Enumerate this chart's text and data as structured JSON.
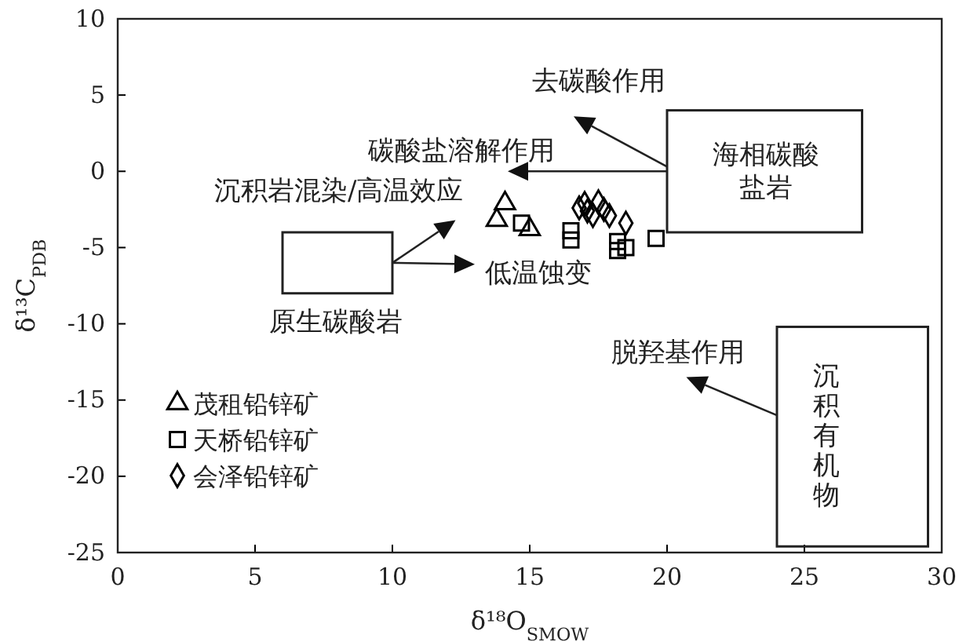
{
  "chart_data": {
    "type": "scatter",
    "xlabel": "δ¹⁸O$_{SMOW}$",
    "ylabel": "δ¹³C$_{PDB}$",
    "xlim": [
      0,
      30
    ],
    "ylim": [
      -25,
      10
    ],
    "xticks": [
      0,
      5,
      10,
      15,
      20,
      25,
      30
    ],
    "yticks": [
      -25,
      -20,
      -15,
      -10,
      -5,
      0,
      5,
      10
    ],
    "grid": false,
    "legend": "bottom left",
    "series": [
      {
        "name": "茂租铅锌矿",
        "color": "#000000",
        "marker": "triangle",
        "x": [
          14.1,
          13.8,
          15.0
        ],
        "values": [
          -2.1,
          -3.2,
          -3.8
        ]
      },
      {
        "name": "天桥铅锌矿",
        "color": "#000000",
        "marker": "square",
        "x": [
          14.7,
          16.5,
          16.5,
          18.2,
          18.5,
          18.2,
          19.6
        ],
        "values": [
          -3.4,
          -3.9,
          -4.5,
          -5.2,
          -5.0,
          -4.6,
          -4.4
        ]
      },
      {
        "name": "会泽铅锌矿",
        "color": "#000000",
        "marker": "diamond",
        "x": [
          16.8,
          17.1,
          17.5,
          17.3,
          17.9,
          18.5,
          17.0,
          17.7
        ],
        "values": [
          -2.4,
          -2.6,
          -2.0,
          -2.9,
          -2.9,
          -3.4,
          -2.1,
          -2.5
        ]
      }
    ],
    "annotations": [
      "去碳酸作用",
      "碳酸盐溶解作用",
      "沉积岩混染/高温效应",
      "低温蚀变",
      "原生碳酸岩",
      "脱羟基作用",
      "海相碳酸盐岩",
      "沉积有机物"
    ]
  }
}
